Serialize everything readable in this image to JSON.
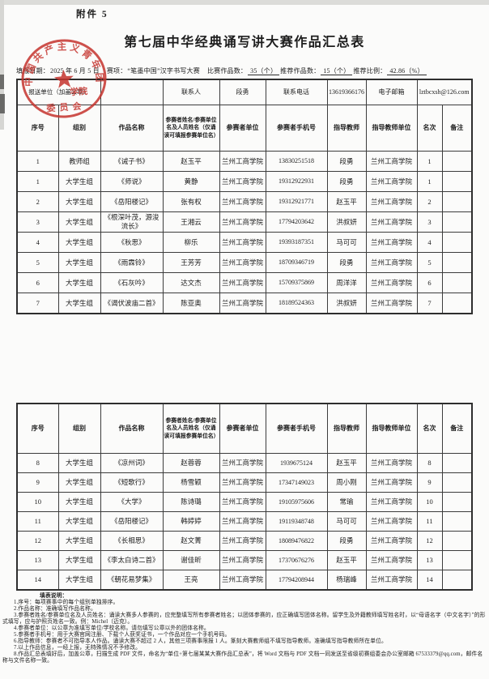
{
  "attachment_label": "附件 5",
  "title": "第七届中华经典诵写讲大赛作品汇总表",
  "info_line": {
    "date_label": "填报日期：",
    "date_value": "2025 年 6 月 5 日",
    "event_label": "赛项：",
    "event_value": "“笔墨中国”汉字书写大赛",
    "entries_label": "比赛作品数：",
    "entries_value": "35（个）",
    "recommended_label": "推荐作品数：",
    "recommended_value": "15（个）",
    "ratio_label": "推荐比例：",
    "ratio_value": "42.86（%）"
  },
  "seal": {
    "ring_text": "中国共产主义青年团",
    "line1": "学院",
    "line2": "委员会",
    "color": "#c5342e"
  },
  "contact_row": {
    "report_unit_label": "报送单位（加盖公章）",
    "unit_name": "",
    "contact_label": "联系人",
    "contact_name": "段勇",
    "phone_label": "联系电话",
    "phone": "13619366176",
    "email_label": "电子邮箱",
    "email": "lztbcxsh@126.com"
  },
  "table": {
    "columns": [
      "序号",
      "组别",
      "作品名称",
      "参赛者姓名/参赛单位名及人员姓名（仅诵读可填报参赛单位名）",
      "参赛者单位",
      "参赛者手机号",
      "指导教师",
      "指导教师单位",
      "名次",
      "备注"
    ]
  },
  "table1_rows": [
    [
      "1",
      "教师组",
      "《诫子书》",
      "赵玉平",
      "兰州工商学院",
      "13830251518",
      "段勇",
      "兰州工商学院",
      "1",
      ""
    ],
    [
      "1",
      "大学生组",
      "《师说》",
      "黄静",
      "兰州工商学院",
      "19312922931",
      "段勇",
      "兰州工商学院",
      "1",
      ""
    ],
    [
      "2",
      "大学生组",
      "《岳阳楼记》",
      "张有权",
      "兰州工商学院",
      "19312921771",
      "赵玉平",
      "兰州工商学院",
      "2",
      ""
    ],
    [
      "3",
      "大学生组",
      "《根深叶茂，源浚流长》",
      "王湘云",
      "兰州工商学院",
      "17794203642",
      "洪叔妍",
      "兰州工商学院",
      "3",
      ""
    ],
    [
      "4",
      "大学生组",
      "《秋思》",
      "柳乐",
      "兰州工商学院",
      "19393187351",
      "马可可",
      "兰州工商学院",
      "4",
      ""
    ],
    [
      "5",
      "大学生组",
      "《雨霖铃》",
      "王芳芳",
      "兰州工商学院",
      "18709346719",
      "段勇",
      "兰州工商学院",
      "5",
      ""
    ],
    [
      "6",
      "大学生组",
      "《石灰吟》",
      "达文杰",
      "兰州工商学院",
      "15709375869",
      "周洋洋",
      "兰州工商学院",
      "6",
      ""
    ],
    [
      "7",
      "大学生组",
      "《谒伏波庙二首》",
      "陈亚奥",
      "兰州工商学院",
      "18189524363",
      "洪叔妍",
      "兰州工商学院",
      "7",
      ""
    ]
  ],
  "table2_rows": [
    [
      "8",
      "大学生组",
      "《凉州词》",
      "赵蓉蓉",
      "兰州工商学院",
      "1939675124",
      "赵玉平",
      "兰州工商学院",
      "8",
      ""
    ],
    [
      "9",
      "大学生组",
      "《短歌行》",
      "杨雪颖",
      "兰州工商学院",
      "17347149023",
      "周小刚",
      "兰州工商学院",
      "9",
      ""
    ],
    [
      "10",
      "大学生组",
      "《大学》",
      "陈诗璐",
      "兰州工商学院",
      "19105975606",
      "常瑜",
      "兰州工商学院",
      "10",
      ""
    ],
    [
      "11",
      "大学生组",
      "《岳阳楼记》",
      "韩婷婷",
      "兰州工商学院",
      "19119348748",
      "马可可",
      "兰州工商学院",
      "11",
      ""
    ],
    [
      "12",
      "大学生组",
      "《长相思》",
      "赵文菁",
      "兰州工商学院",
      "18089476822",
      "段勇",
      "兰州工商学院",
      "12",
      ""
    ],
    [
      "13",
      "大学生组",
      "《李太白诗二首》",
      "谢佳昕",
      "兰州工商学院",
      "17370676276",
      "赵玉平",
      "兰州工商学院",
      "13",
      ""
    ],
    [
      "14",
      "大学生组",
      "《朝花易梦集》",
      "王亮",
      "兰州工商学院",
      "17794208944",
      "杨瑞峰",
      "兰州工商学院",
      "14",
      ""
    ]
  ],
  "notes": {
    "heading": "填表说明：",
    "items": [
      "1.序号：每项赛事中的每个组别单独排序。",
      "2.作品名称：准确填写作品名称。",
      "3.参赛者姓名/参赛单位名及人员姓名：诵读大赛多人参赛的，应完整填写所有参赛者姓名；以团体参赛的，应正确填写团体名称。留学生及外籍教师填写姓名时，以“母语名字（中文名字）”的形式填写，应与护照页姓名一致。例：Michel（迈克）。",
      "4.参赛者单位：以公章为准填写单位/学校名称。请勿填写公章以外的团体名称。",
      "5.参赛者手机号：用于大赛官网注册、下载个人获奖证书，一个作品对应一个手机号码。",
      "6.指导教师：参赛者不可指导本人作品。诵读大赛不超过 2 人，其他三项赛事限报 1 人。篆刻大赛教师组不填写指导教师。准确填写指导教师所在单位。",
      "7.以上作品信息，一经上报，无特殊情况不予修改。",
      "8.作品汇总表填好后，加盖公章，扫描生成 PDF 文件，命名为“单位+第七届某某大赛作品汇总表”，将 Word 文档与 PDF 文档一同发送至省级初赛组委会办公室邮箱 67533379@qq.com，邮件名称与文件名称一致。"
    ]
  }
}
